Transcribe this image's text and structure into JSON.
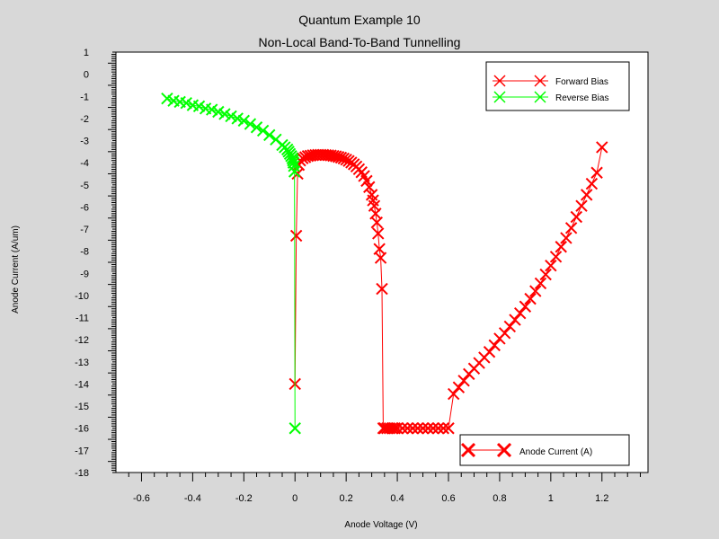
{
  "chart_data": {
    "type": "line",
    "title": "Quantum Example 10",
    "subtitle": "Non-Local Band-To-Band Tunnelling",
    "xlabel": "Anode Voltage (V)",
    "ylabel": "Anode Current (A/um)",
    "xlim": [
      -0.7,
      1.38
    ],
    "ylim": [
      -18,
      1
    ],
    "xticks": [
      "-0.6",
      "-0.4",
      "-0.2",
      "0",
      "0.2",
      "0.4",
      "0.6",
      "0.8",
      "1",
      "1.2"
    ],
    "yticks": [
      "1",
      "0",
      "-1",
      "-2",
      "-3",
      "-4",
      "-5",
      "-6",
      "-7",
      "-8",
      "-9",
      "-10",
      "-11",
      "-12",
      "-13",
      "-14",
      "-15",
      "-16",
      "-17",
      "-18"
    ],
    "grid": false,
    "legend_position": "top-right",
    "series": [
      {
        "name": "Forward Bias",
        "color": "#ff0000",
        "marker": "x",
        "x": [
          0.0,
          0.005,
          0.01,
          0.015,
          0.02,
          0.03,
          0.04,
          0.05,
          0.06,
          0.07,
          0.08,
          0.09,
          0.1,
          0.11,
          0.12,
          0.13,
          0.14,
          0.15,
          0.16,
          0.17,
          0.18,
          0.19,
          0.2,
          0.21,
          0.22,
          0.23,
          0.24,
          0.25,
          0.26,
          0.27,
          0.28,
          0.29,
          0.3,
          0.305,
          0.31,
          0.315,
          0.32,
          0.325,
          0.33,
          0.335,
          0.34,
          0.345,
          0.35,
          0.36,
          0.37,
          0.38,
          0.39,
          0.4,
          0.42,
          0.44,
          0.46,
          0.48,
          0.5,
          0.52,
          0.54,
          0.56,
          0.58,
          0.6,
          0.62,
          0.64,
          0.66,
          0.68,
          0.7,
          0.72,
          0.74,
          0.76,
          0.78,
          0.8,
          0.82,
          0.84,
          0.86,
          0.88,
          0.9,
          0.92,
          0.94,
          0.96,
          0.98,
          1.0,
          1.02,
          1.04,
          1.06,
          1.08,
          1.1,
          1.12,
          1.14,
          1.16,
          1.18,
          1.2
        ],
        "y": [
          -14.0,
          -7.3,
          -4.5,
          -4.1,
          -3.9,
          -3.8,
          -3.75,
          -3.7,
          -3.68,
          -3.66,
          -3.65,
          -3.64,
          -3.64,
          -3.64,
          -3.65,
          -3.66,
          -3.67,
          -3.69,
          -3.71,
          -3.74,
          -3.77,
          -3.81,
          -3.86,
          -3.92,
          -3.99,
          -4.07,
          -4.17,
          -4.29,
          -4.43,
          -4.6,
          -4.82,
          -5.1,
          -5.45,
          -5.7,
          -5.95,
          -6.3,
          -6.7,
          -7.2,
          -7.9,
          -8.3,
          -9.7,
          -16.0,
          -16.0,
          -16.0,
          -16.0,
          -16.0,
          -16.0,
          -16.0,
          -16.0,
          -16.0,
          -16.0,
          -16.0,
          -16.0,
          -16.0,
          -16.0,
          -16.0,
          -16.0,
          -16.0,
          -14.45,
          -14.15,
          -13.85,
          -13.55,
          -13.3,
          -13.05,
          -12.8,
          -12.55,
          -12.25,
          -11.95,
          -11.7,
          -11.4,
          -11.1,
          -10.8,
          -10.5,
          -10.15,
          -9.8,
          -9.45,
          -9.05,
          -8.65,
          -8.25,
          -7.8,
          -7.4,
          -6.95,
          -6.45,
          -5.95,
          -5.45,
          -4.95,
          -4.45,
          -3.3
        ]
      },
      {
        "name": "Reverse Bias",
        "color": "#00ff00",
        "marker": "x",
        "x": [
          0.0,
          -0.002,
          -0.004,
          -0.006,
          -0.008,
          -0.01,
          -0.015,
          -0.02,
          -0.025,
          -0.03,
          -0.04,
          -0.05,
          -0.075,
          -0.1,
          -0.125,
          -0.15,
          -0.175,
          -0.2,
          -0.225,
          -0.25,
          -0.275,
          -0.3,
          -0.325,
          -0.35,
          -0.375,
          -0.4,
          -0.425,
          -0.45,
          -0.475,
          -0.5
        ],
        "y": [
          -16.0,
          -4.4,
          -4.15,
          -4.0,
          -3.9,
          -3.8,
          -3.7,
          -3.6,
          -3.5,
          -3.4,
          -3.3,
          -3.2,
          -2.95,
          -2.75,
          -2.55,
          -2.4,
          -2.25,
          -2.1,
          -2.0,
          -1.9,
          -1.8,
          -1.7,
          -1.6,
          -1.55,
          -1.45,
          -1.4,
          -1.3,
          -1.25,
          -1.2,
          -1.1
        ]
      }
    ],
    "secondary_legend": {
      "label": "Anode Current (A)",
      "position": "bottom-right"
    }
  }
}
